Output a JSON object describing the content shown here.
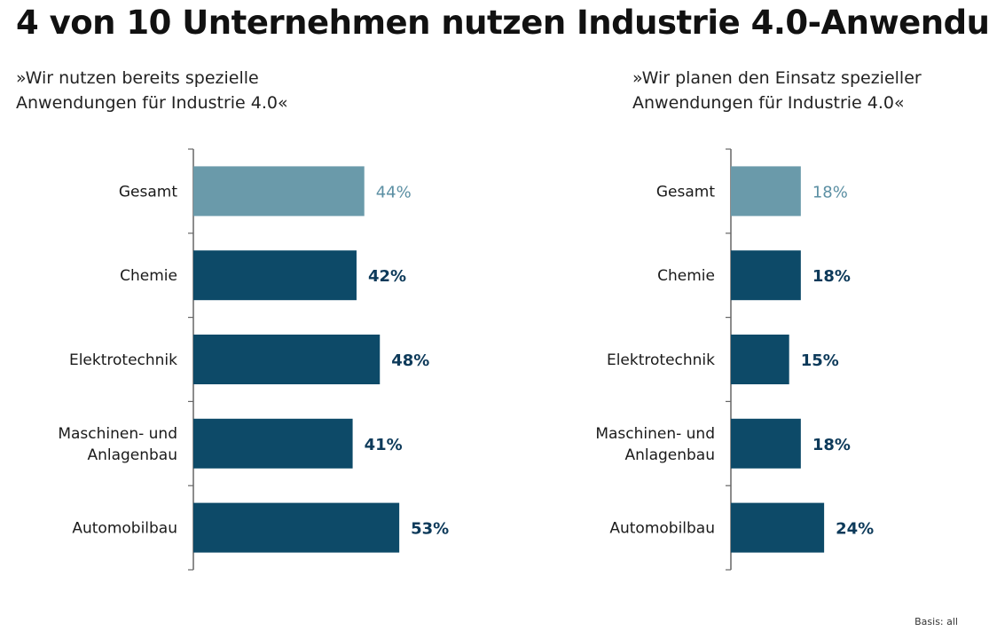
{
  "title": "4 von 10 Unternehmen nutzen Industrie 4.0-Anwendu",
  "footnote": "Basis: all",
  "colors": {
    "highlight": "#6a9aaa",
    "bar": "#0d4a68",
    "axis": "#666666",
    "highlight_text": "#5b8fa3",
    "bar_text": "#0d3a5a"
  },
  "chart_data": [
    {
      "type": "bar",
      "orientation": "horizontal",
      "subtitle_lines": [
        "»Wir nutzen bereits spezielle",
        "Anwendungen für Industrie 4.0«"
      ],
      "categories": [
        "Gesamt",
        "Chemie",
        "Elektrotechnik",
        "Maschinen- und Anlagenbau",
        "Automobilbau"
      ],
      "category_lines": [
        [
          "Gesamt"
        ],
        [
          "Chemie"
        ],
        [
          "Elektrotechnik"
        ],
        [
          "Maschinen- und",
          "Anlagenbau"
        ],
        [
          "Automobilbau"
        ]
      ],
      "values": [
        44,
        42,
        48,
        41,
        53
      ],
      "value_labels": [
        "44%",
        "42%",
        "48%",
        "41%",
        "53%"
      ],
      "highlight_index": 0,
      "unit": "%"
    },
    {
      "type": "bar",
      "orientation": "horizontal",
      "subtitle_lines": [
        "»Wir planen den Einsatz spezieller",
        "Anwendungen für Industrie 4.0«"
      ],
      "categories": [
        "Gesamt",
        "Chemie",
        "Elektrotechnik",
        "Maschinen- und Anlagenbau",
        "Automobilbau"
      ],
      "category_lines": [
        [
          "Gesamt"
        ],
        [
          "Chemie"
        ],
        [
          "Elektrotechnik"
        ],
        [
          "Maschinen- und",
          "Anlagenbau"
        ],
        [
          "Automobilbau"
        ]
      ],
      "values": [
        18,
        18,
        15,
        18,
        24
      ],
      "value_labels": [
        "18%",
        "18%",
        "15%",
        "18%",
        "24%"
      ],
      "highlight_index": 0,
      "unit": "%"
    }
  ]
}
